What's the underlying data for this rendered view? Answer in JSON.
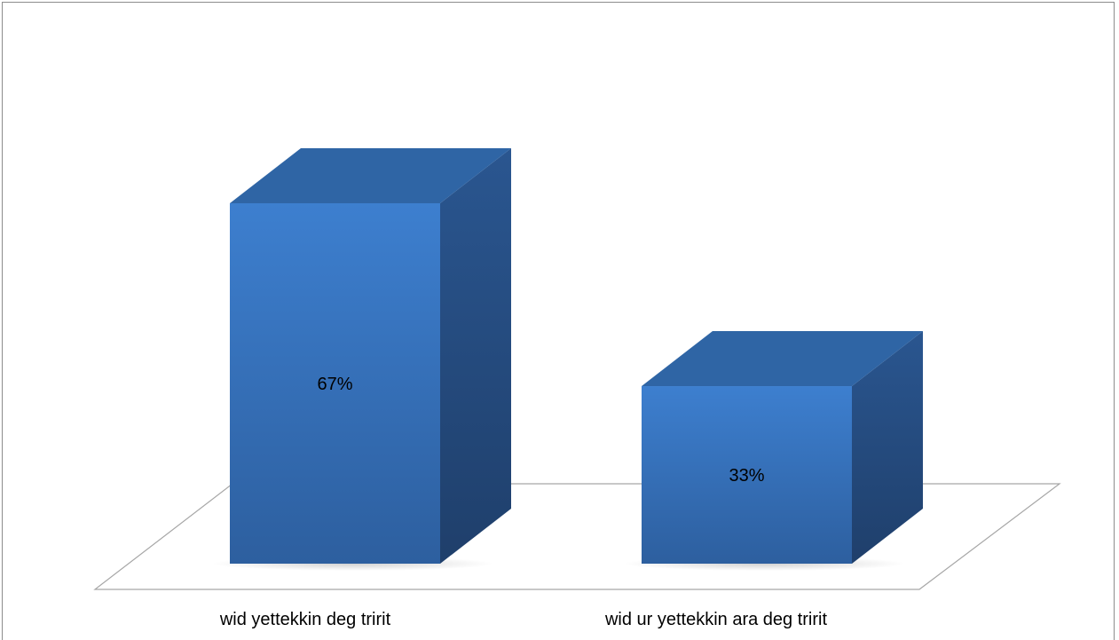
{
  "chart_data": {
    "type": "bar",
    "style": "3d-column",
    "categories": [
      "wid yettekkin deg tririt",
      "wid ur yettekkin ara deg tririt"
    ],
    "values": [
      67,
      33
    ],
    "data_labels": [
      "67%",
      "33%"
    ],
    "ylim": [
      0,
      100
    ],
    "value_unit": "%",
    "grid": false,
    "legend": "none",
    "title": "",
    "xlabel": "",
    "ylabel": ""
  },
  "colors": {
    "bar_front_top": "#3d7fcf",
    "bar_front_bottom": "#2d5f9f",
    "bar_top_face": "#2f65a5",
    "bar_side_top": "#2a5690",
    "bar_side_bottom": "#1f3f6b",
    "floor_stroke": "#a6a6a6",
    "frame_stroke": "#8c8c8c"
  }
}
